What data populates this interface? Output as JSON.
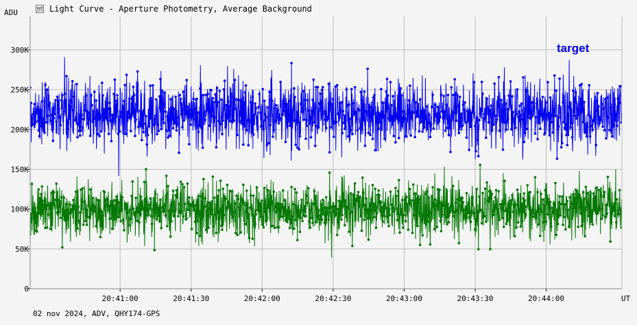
{
  "title": "Light Curve - Aperture Photometry, Average Background",
  "footer": "02 nov 2024, ADV, QHY174-GPS",
  "chart_data": {
    "type": "line",
    "ylabel": "ADU",
    "xlabel": "UT",
    "y_ticks": [
      "0",
      "50K",
      "100K",
      "150K",
      "200K",
      "250K",
      "300K"
    ],
    "y_tick_values": [
      0,
      50000,
      100000,
      150000,
      200000,
      250000,
      300000
    ],
    "ylim": [
      0,
      342000
    ],
    "x_ticks": [
      "20:41:00",
      "20:41:30",
      "20:42:00",
      "20:42:30",
      "20:43:00",
      "20:43:30",
      "20:44:00"
    ],
    "x_tick_values_seconds": [
      0,
      30,
      60,
      90,
      120,
      150,
      180
    ],
    "xlim_seconds": [
      -38,
      212
    ],
    "grid": true,
    "legend_position": "top-right",
    "series": [
      {
        "name": "target",
        "color": "#0000ee",
        "mean": 220000,
        "spread": 40000,
        "min": 140000,
        "max": 305000
      },
      {
        "color": "#007700",
        "mean": 100000,
        "spread": 34000,
        "min": 20000,
        "max": 165000
      }
    ]
  }
}
